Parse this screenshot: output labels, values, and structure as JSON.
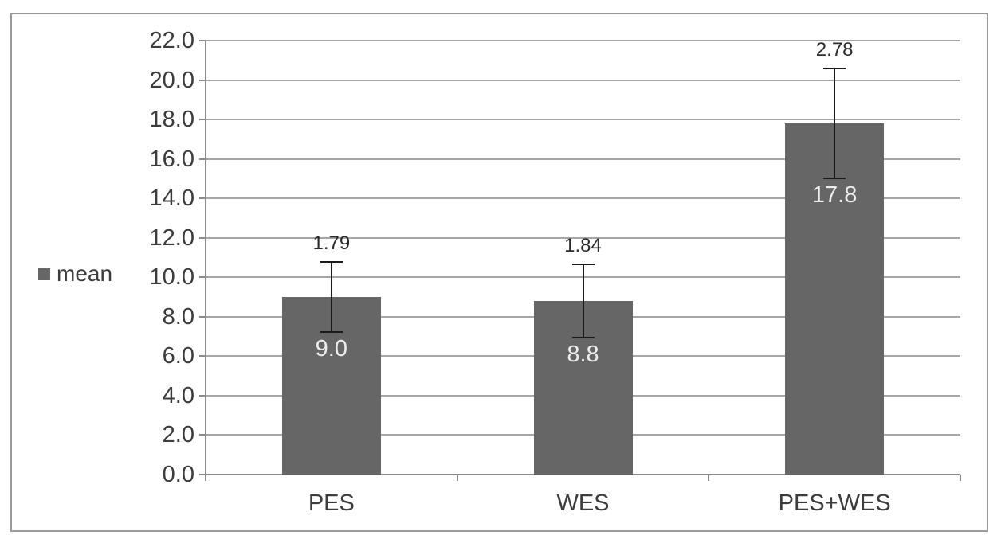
{
  "chart_data": {
    "type": "bar",
    "categories": [
      "PES",
      "WES",
      "PES+WES"
    ],
    "series": [
      {
        "name": "mean",
        "values": [
          9.0,
          8.8,
          17.8
        ]
      }
    ],
    "value_labels": [
      "9.0",
      "8.8",
      "17.8"
    ],
    "error_values": [
      1.79,
      1.84,
      2.78
    ],
    "error_labels": [
      "1.79",
      "1.84",
      "2.78"
    ],
    "y_ticks": [
      "22.0",
      "20.0",
      "18.0",
      "16.0",
      "14.0",
      "12.0",
      "10.0",
      "8.0",
      "6.0",
      "4.0",
      "2.0",
      "0.0"
    ],
    "ylim": [
      0,
      22
    ],
    "y_step": 2,
    "xlabel": "",
    "ylabel": "",
    "title": "",
    "grid": true,
    "legend": {
      "label": "mean",
      "position": "left"
    },
    "colors": {
      "bar": "#666666",
      "gridline": "#a6a6a6",
      "axis": "#8c8c8c",
      "tick": "#8c8c8c",
      "error_bar": "#1a1a1a",
      "value_label": "#ececec",
      "text": "#3c3c3c",
      "frame_border": "#9b9b9b",
      "background": "#ffffff"
    }
  }
}
